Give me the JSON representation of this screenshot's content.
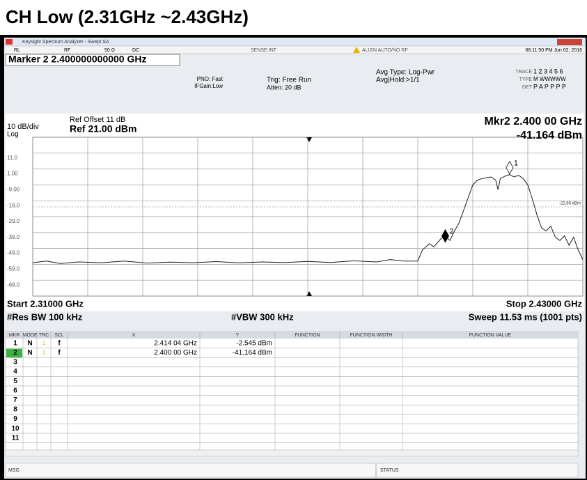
{
  "window": {
    "title": "CH Low (2.31GHz ~2.43GHz)",
    "app_title": "Keysight Spectrum Analyzer - Swept SA"
  },
  "toolbar": {
    "rl": "RL",
    "rf": "RF",
    "impedance": "50 Ω",
    "coupling": "DC",
    "sense": "SENSE:INT",
    "align": "ALIGN AUTO/NO RF",
    "datetime": "06:11:50 PM Jun 02, 2016"
  },
  "settings": {
    "marker": "Marker 2 2.400000000000 GHz",
    "pno": "PNO: Fast",
    "ifgain": "IFGain:Low",
    "trig": "Trig: Free Run",
    "atten": "Atten: 20 dB",
    "avg_type": "Avg Type: Log-Pwr",
    "avg_hold": "Avg|Hold:>1/1",
    "trace_label": "TRACE",
    "trace_values": "1 2 3 4 5 6",
    "type_label": "TYPE",
    "type_values": "M WWWWW",
    "det_label": "DET",
    "det_values": "P A P P P P"
  },
  "chart_data": {
    "type": "line",
    "scale": "10 dB/div",
    "scale_type": "Log",
    "ref_offset": "Ref Offset 11 dB",
    "ref_level": "Ref 21.00 dBm",
    "marker_readout_x": "Mkr2 2.400 00 GHz",
    "marker_readout_y": "-41.164 dBm",
    "start": "Start 2.31000 GHz",
    "stop": "Stop 2.43000 GHz",
    "rbw": "#Res BW 100 kHz",
    "vbw": "#VBW 300 kHz",
    "sweep": "Sweep 11.53 ms (1001 pts)",
    "xlim": [
      2.31,
      2.43
    ],
    "ylim": [
      -79,
      21
    ],
    "yticks": [
      {
        "value": 11,
        "label": "11.0"
      },
      {
        "value": 1,
        "label": "1.00"
      },
      {
        "value": -9,
        "label": "-9.00"
      },
      {
        "value": -19,
        "label": "-19.0"
      },
      {
        "value": -29,
        "label": "-29.0"
      },
      {
        "value": -39,
        "label": "-39.0"
      },
      {
        "value": -49,
        "label": "-49.0"
      },
      {
        "value": -59,
        "label": "-59.0"
      },
      {
        "value": -69,
        "label": "-69.0"
      }
    ],
    "grid": true,
    "x": [
      2.31,
      2.313,
      2.316,
      2.32,
      2.325,
      2.33,
      2.335,
      2.34,
      2.345,
      2.35,
      2.355,
      2.36,
      2.365,
      2.37,
      2.375,
      2.38,
      2.385,
      2.388,
      2.391,
      2.394,
      2.395,
      2.3965,
      2.3975,
      2.399,
      2.4,
      2.401,
      2.402,
      2.403,
      2.404,
      2.405,
      2.406,
      2.407,
      2.408,
      2.409,
      2.41,
      2.411,
      2.4115,
      2.412,
      2.413,
      2.414,
      2.415,
      2.416,
      2.417,
      2.418,
      2.419,
      2.42,
      2.421,
      2.422,
      2.423,
      2.424,
      2.425,
      2.426,
      2.427,
      2.428,
      2.429,
      2.43
    ],
    "series": [
      {
        "color": "#1a1a1a",
        "values": [
          -58,
          -57,
          -58.5,
          -57.5,
          -58,
          -57,
          -58.2,
          -57.6,
          -58,
          -57.3,
          -58.1,
          -57.5,
          -57.9,
          -57.2,
          -57.8,
          -56.8,
          -57.5,
          -56,
          -57,
          -57,
          -50,
          -46,
          -48,
          -43,
          -41.2,
          -44,
          -38,
          -33,
          -25,
          -17,
          -9,
          -6,
          -5,
          -4.5,
          -4,
          -6,
          -12,
          -5,
          -3.5,
          -2.5,
          -4,
          -3,
          -5,
          -9,
          -18,
          -28,
          -36,
          -38,
          -35,
          -42,
          -44,
          -41,
          -47,
          -42,
          -50,
          -56
        ]
      }
    ],
    "display_line": {
      "value": -22.86,
      "label": "-22.86 dBm"
    },
    "markers": [
      {
        "number": "1",
        "x": 2.41404,
        "y": -2.545,
        "x_label": "2.414 04 GHz",
        "y_label": "-2.545 dBm"
      },
      {
        "number": "2",
        "x": 2.4,
        "y": -41.164,
        "x_label": "2.400 00 GHz",
        "y_label": "-41.164 dBm"
      }
    ]
  },
  "marker_table": {
    "columns": [
      "MKR",
      "MODE",
      "TRC",
      "SCL",
      "X",
      "Y",
      "FUNCTION",
      "FUNCTION WIDTH",
      "FUNCTION VALUE"
    ],
    "rows": [
      {
        "mkr": "1",
        "mode": "N",
        "trc": "1",
        "scl": "f"
      },
      {
        "mkr": "2",
        "mode": "N",
        "trc": "1",
        "scl": "f"
      },
      {
        "mkr": "3"
      },
      {
        "mkr": "4"
      },
      {
        "mkr": "5"
      },
      {
        "mkr": "6"
      },
      {
        "mkr": "7"
      },
      {
        "mkr": "8"
      },
      {
        "mkr": "9"
      },
      {
        "mkr": "10"
      },
      {
        "mkr": "11"
      }
    ]
  },
  "status_bar": {
    "msg": "MSG",
    "status": "STATUS"
  }
}
